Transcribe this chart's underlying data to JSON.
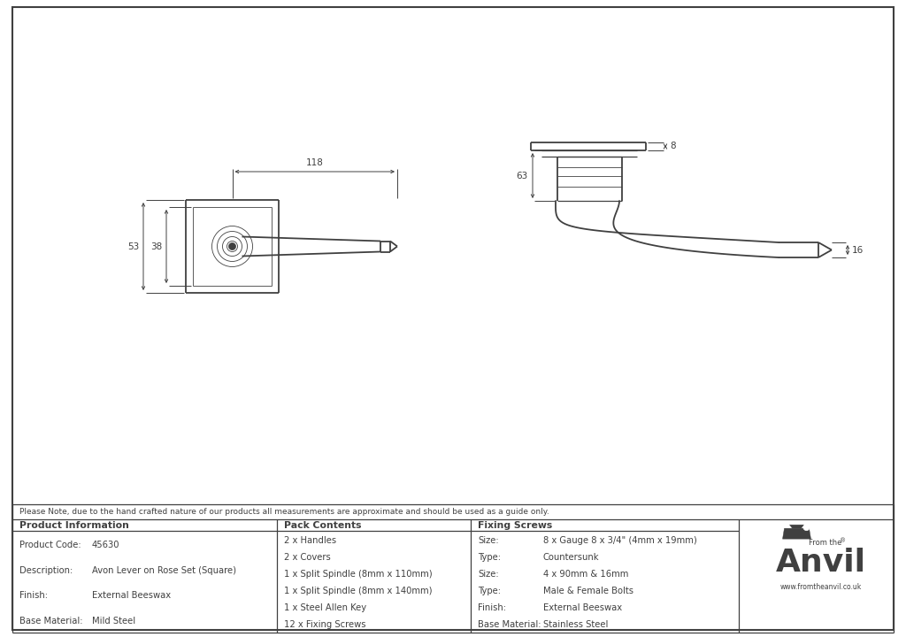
{
  "bg_color": "#ffffff",
  "line_color": "#404040",
  "note_text": "Please Note, due to the hand crafted nature of our products all measurements are approximate and should be used as a guide only.",
  "product_info": {
    "header": "Product Information",
    "rows": [
      [
        "Product Code:",
        "45630"
      ],
      [
        "Description:",
        "Avon Lever on Rose Set (Square)"
      ],
      [
        "Finish:",
        "External Beeswax"
      ],
      [
        "Base Material:",
        "Mild Steel"
      ]
    ]
  },
  "pack_contents": {
    "header": "Pack Contents",
    "items": [
      "2 x Handles",
      "2 x Covers",
      "1 x Split Spindle (8mm x 110mm)",
      "1 x Split Spindle (8mm x 140mm)",
      "1 x Steel Allen Key",
      "12 x Fixing Screws"
    ]
  },
  "fixing_screws": {
    "header": "Fixing Screws",
    "rows": [
      [
        "Size:",
        "8 x Gauge 8 x 3/4\" (4mm x 19mm)"
      ],
      [
        "Type:",
        "Countersunk"
      ],
      [
        "Size:",
        "4 x 90mm & 16mm"
      ],
      [
        "Type:",
        "Male & Female Bolts"
      ],
      [
        "Finish:",
        "External Beeswax"
      ],
      [
        "Base Material:",
        "Stainless Steel"
      ]
    ]
  },
  "dim_118": "118",
  "dim_53": "53",
  "dim_38": "38",
  "dim_8": "8",
  "dim_63": "63",
  "dim_16": "16"
}
